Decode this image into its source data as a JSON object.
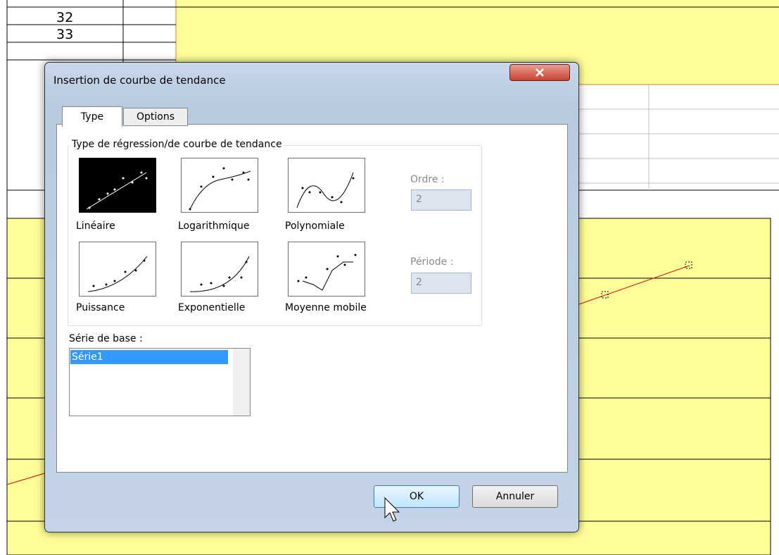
{
  "spreadsheet": {
    "cells": [
      "32",
      "33"
    ]
  },
  "dialog": {
    "title": "Insertion de courbe de tendance",
    "tabs": [
      "Type",
      "Options"
    ],
    "group_label": "Type de régression/de courbe de tendance",
    "types": [
      "Linéaire",
      "Logarithmique",
      "Polynomiale",
      "Puissance",
      "Exponentielle",
      "Moyenne mobile"
    ],
    "order_label": "Ordre :",
    "order_value": "2",
    "period_label": "Période :",
    "period_value": "2",
    "series_label": "Série de base :",
    "series": [
      "Série1"
    ],
    "buttons": [
      "OK",
      "Annuler"
    ]
  }
}
